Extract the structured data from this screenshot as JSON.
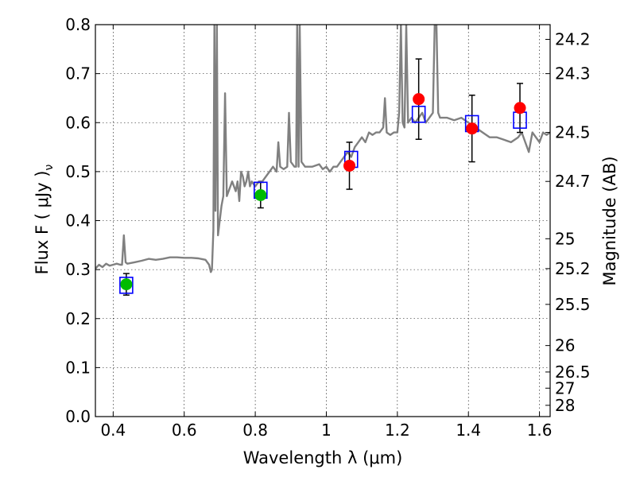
{
  "chart_data": {
    "type": "scatter",
    "xlabel": "Wavelength  λ (μm)",
    "ylabel": "Flux  F  ( μJy )",
    "ylabel_sub": "ν",
    "y2label": "Magnitude (AB)",
    "xlim": [
      0.35,
      1.63
    ],
    "ylim": [
      0.0,
      0.8
    ],
    "grid": true,
    "x_ticks": [
      0.4,
      0.6,
      0.8,
      1.0,
      1.2,
      1.4,
      1.6
    ],
    "x_tick_labels": [
      "0.4",
      "0.6",
      "0.8",
      "1",
      "1.2",
      "1.4",
      "1.6"
    ],
    "y_ticks": [
      0.0,
      0.1,
      0.2,
      0.3,
      0.4,
      0.5,
      0.6,
      0.7,
      0.8
    ],
    "y_tick_labels": [
      "0.0",
      "0.1",
      "0.2",
      "0.3",
      "0.4",
      "0.5",
      "0.6",
      "0.7",
      "0.8"
    ],
    "mag_ticks": [
      {
        "label": "24.2",
        "flux": 0.77
      },
      {
        "label": "24.3",
        "flux": 0.7
      },
      {
        "label": "24.5",
        "flux": 0.58
      },
      {
        "label": "24.7",
        "flux": 0.48
      },
      {
        "label": "25",
        "flux": 0.363
      },
      {
        "label": "25.2",
        "flux": 0.302
      },
      {
        "label": "25.5",
        "flux": 0.229
      },
      {
        "label": "26",
        "flux": 0.145
      },
      {
        "label": "26.5",
        "flux": 0.091
      },
      {
        "label": "27",
        "flux": 0.058
      },
      {
        "label": "28",
        "flux": 0.023
      }
    ],
    "spectrum": {
      "color": "#808080",
      "points": [
        [
          0.35,
          0.302
        ],
        [
          0.36,
          0.31
        ],
        [
          0.37,
          0.305
        ],
        [
          0.38,
          0.312
        ],
        [
          0.39,
          0.308
        ],
        [
          0.4,
          0.31
        ],
        [
          0.41,
          0.312
        ],
        [
          0.42,
          0.31
        ],
        [
          0.425,
          0.31
        ],
        [
          0.43,
          0.37
        ],
        [
          0.435,
          0.315
        ],
        [
          0.44,
          0.312
        ],
        [
          0.46,
          0.315
        ],
        [
          0.48,
          0.318
        ],
        [
          0.5,
          0.322
        ],
        [
          0.52,
          0.32
        ],
        [
          0.54,
          0.322
        ],
        [
          0.56,
          0.325
        ],
        [
          0.58,
          0.325
        ],
        [
          0.6,
          0.324
        ],
        [
          0.62,
          0.324
        ],
        [
          0.64,
          0.323
        ],
        [
          0.66,
          0.32
        ],
        [
          0.67,
          0.31
        ],
        [
          0.675,
          0.295
        ],
        [
          0.678,
          0.3
        ],
        [
          0.682,
          0.38
        ],
        [
          0.685,
          0.8
        ],
        [
          0.688,
          0.42
        ],
        [
          0.692,
          0.8
        ],
        [
          0.695,
          0.37
        ],
        [
          0.7,
          0.4
        ],
        [
          0.705,
          0.43
        ],
        [
          0.71,
          0.45
        ],
        [
          0.715,
          0.66
        ],
        [
          0.72,
          0.45
        ],
        [
          0.73,
          0.47
        ],
        [
          0.735,
          0.48
        ],
        [
          0.74,
          0.47
        ],
        [
          0.745,
          0.46
        ],
        [
          0.75,
          0.48
        ],
        [
          0.755,
          0.44
        ],
        [
          0.76,
          0.5
        ],
        [
          0.765,
          0.49
        ],
        [
          0.77,
          0.47
        ],
        [
          0.775,
          0.48
        ],
        [
          0.78,
          0.5
        ],
        [
          0.785,
          0.47
        ],
        [
          0.79,
          0.48
        ],
        [
          0.8,
          0.47
        ],
        [
          0.81,
          0.48
        ],
        [
          0.82,
          0.48
        ],
        [
          0.83,
          0.49
        ],
        [
          0.84,
          0.5
        ],
        [
          0.85,
          0.51
        ],
        [
          0.86,
          0.5
        ],
        [
          0.865,
          0.56
        ],
        [
          0.87,
          0.51
        ],
        [
          0.88,
          0.505
        ],
        [
          0.89,
          0.51
        ],
        [
          0.895,
          0.62
        ],
        [
          0.9,
          0.52
        ],
        [
          0.91,
          0.51
        ],
        [
          0.915,
          0.51
        ],
        [
          0.918,
          0.8
        ],
        [
          0.922,
          0.51
        ],
        [
          0.925,
          0.8
        ],
        [
          0.93,
          0.52
        ],
        [
          0.94,
          0.51
        ],
        [
          0.96,
          0.51
        ],
        [
          0.98,
          0.515
        ],
        [
          0.99,
          0.505
        ],
        [
          1.0,
          0.51
        ],
        [
          1.01,
          0.5
        ],
        [
          1.02,
          0.51
        ],
        [
          1.03,
          0.51
        ],
        [
          1.04,
          0.52
        ],
        [
          1.05,
          0.53
        ],
        [
          1.06,
          0.54
        ],
        [
          1.07,
          0.53
        ],
        [
          1.08,
          0.55
        ],
        [
          1.09,
          0.56
        ],
        [
          1.1,
          0.57
        ],
        [
          1.11,
          0.56
        ],
        [
          1.12,
          0.58
        ],
        [
          1.13,
          0.575
        ],
        [
          1.14,
          0.58
        ],
        [
          1.15,
          0.58
        ],
        [
          1.16,
          0.59
        ],
        [
          1.165,
          0.65
        ],
        [
          1.17,
          0.58
        ],
        [
          1.18,
          0.575
        ],
        [
          1.19,
          0.58
        ],
        [
          1.2,
          0.58
        ],
        [
          1.205,
          0.62
        ],
        [
          1.21,
          0.8
        ],
        [
          1.215,
          0.6
        ],
        [
          1.22,
          0.59
        ],
        [
          1.225,
          0.8
        ],
        [
          1.23,
          0.6
        ],
        [
          1.24,
          0.61
        ],
        [
          1.25,
          0.6
        ],
        [
          1.26,
          0.61
        ],
        [
          1.27,
          0.62
        ],
        [
          1.28,
          0.6
        ],
        [
          1.29,
          0.61
        ],
        [
          1.3,
          0.62
        ],
        [
          1.305,
          0.8
        ],
        [
          1.31,
          0.8
        ],
        [
          1.315,
          0.62
        ],
        [
          1.32,
          0.61
        ],
        [
          1.34,
          0.61
        ],
        [
          1.36,
          0.605
        ],
        [
          1.38,
          0.61
        ],
        [
          1.4,
          0.6
        ],
        [
          1.42,
          0.59
        ],
        [
          1.44,
          0.58
        ],
        [
          1.46,
          0.57
        ],
        [
          1.48,
          0.57
        ],
        [
          1.5,
          0.565
        ],
        [
          1.52,
          0.56
        ],
        [
          1.54,
          0.57
        ],
        [
          1.55,
          0.58
        ],
        [
          1.56,
          0.56
        ],
        [
          1.57,
          0.54
        ],
        [
          1.575,
          0.56
        ],
        [
          1.58,
          0.58
        ],
        [
          1.59,
          0.57
        ],
        [
          1.6,
          0.56
        ],
        [
          1.61,
          0.58
        ],
        [
          1.62,
          0.575
        ],
        [
          1.63,
          0.58
        ]
      ]
    },
    "observed_green": {
      "color": "#00bb00",
      "points": [
        {
          "x": 0.437,
          "y": 0.27,
          "err": 0.022
        },
        {
          "x": 0.815,
          "y": 0.452,
          "err": 0.026
        }
      ]
    },
    "observed_red": {
      "color": "#ff0000",
      "points": [
        {
          "x": 1.065,
          "y": 0.512,
          "err": 0.048
        },
        {
          "x": 1.26,
          "y": 0.648,
          "err": 0.082
        },
        {
          "x": 1.41,
          "y": 0.588,
          "err": 0.068
        },
        {
          "x": 1.545,
          "y": 0.63,
          "err": 0.05
        }
      ]
    },
    "model_boxes": {
      "color": "#0000ff",
      "points": [
        {
          "x": 0.437,
          "y": 0.268
        },
        {
          "x": 0.815,
          "y": 0.462
        },
        {
          "x": 1.07,
          "y": 0.525
        },
        {
          "x": 1.26,
          "y": 0.617
        },
        {
          "x": 1.41,
          "y": 0.598
        },
        {
          "x": 1.545,
          "y": 0.605
        }
      ]
    }
  }
}
